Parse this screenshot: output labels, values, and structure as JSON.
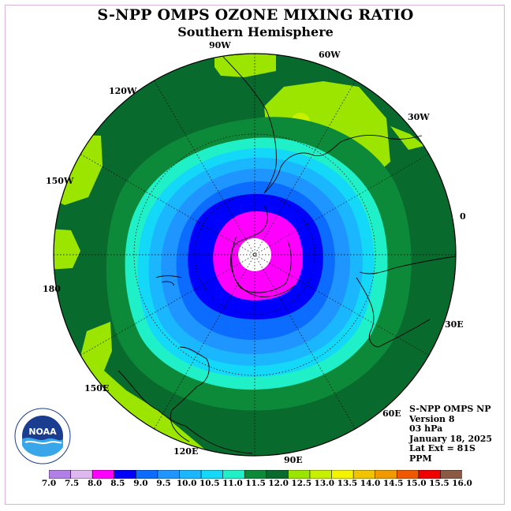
{
  "title": "S-NPP OMPS OZONE MIXING RATIO",
  "subtitle": "Southern Hemisphere",
  "longitude_labels": [
    {
      "text": "90W",
      "angle_deg": -90
    },
    {
      "text": "60W",
      "angle_deg": -60
    },
    {
      "text": "30W",
      "angle_deg": -30
    },
    {
      "text": "0",
      "angle_deg": 0
    },
    {
      "text": "30E",
      "angle_deg": 30
    },
    {
      "text": "60E",
      "angle_deg": 60
    },
    {
      "text": "90E",
      "angle_deg": 90
    },
    {
      "text": "120E",
      "angle_deg": 120
    },
    {
      "text": "150E",
      "angle_deg": 150
    },
    {
      "text": "180",
      "angle_deg": 180
    },
    {
      "text": "150W",
      "angle_deg": 210
    },
    {
      "text": "120W",
      "angle_deg": 240
    }
  ],
  "info": {
    "instrument": "S-NPP OMPS NP",
    "version": "Version 8",
    "level": "03 hPa",
    "date": "January 18, 2025",
    "lat_ext": "Lat Ext = 81S",
    "units": "PPM"
  },
  "colorbar": {
    "ticks": [
      "7.0",
      "7.5",
      "8.0",
      "8.5",
      "9.0",
      "9.5",
      "10.0",
      "10.5",
      "11.0",
      "11.5",
      "12.0",
      "12.5",
      "13.0",
      "13.5",
      "14.0",
      "14.5",
      "15.0",
      "15.5",
      "16.0"
    ],
    "colors": [
      "#b27fe6",
      "#e0b8f0",
      "#ff00ff",
      "#0000ff",
      "#0b6cff",
      "#1f96ff",
      "#1ab7ff",
      "#13d8f7",
      "#1ff0c8",
      "#0c8a3a",
      "#096a2e",
      "#9be500",
      "#c6f000",
      "#f4f400",
      "#f0c400",
      "#f09a00",
      "#f05800",
      "#f00000",
      "#8a5a44"
    ]
  },
  "logo": {
    "text": "NOAA"
  }
}
